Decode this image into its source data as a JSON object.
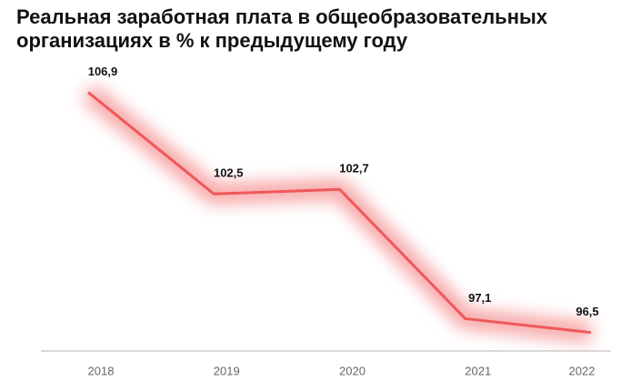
{
  "chart_data": {
    "type": "line",
    "title": "Реальная заработная плата в общеобразовательных организациях в % к предыдущему году",
    "categories": [
      "2018",
      "2019",
      "2020",
      "2021",
      "2022"
    ],
    "values": [
      106.9,
      102.5,
      102.7,
      97.1,
      96.5
    ],
    "value_labels": [
      "106,9",
      "102,5",
      "102,7",
      "97,1",
      "96,5"
    ],
    "color": "#f0585a",
    "ylim": [
      95.7,
      111
    ]
  }
}
